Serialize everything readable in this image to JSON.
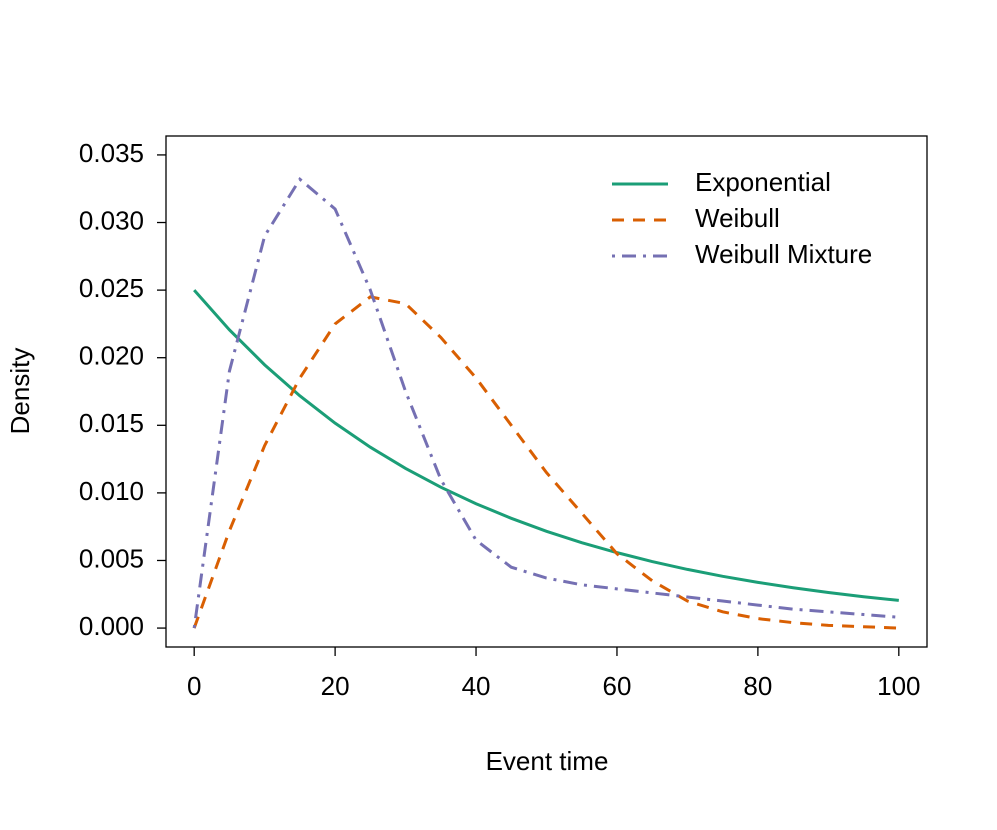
{
  "chart_data": {
    "type": "line",
    "xlabel": "Event time",
    "ylabel": "Density",
    "x": [
      0,
      5,
      10,
      15,
      20,
      25,
      30,
      35,
      40,
      45,
      50,
      55,
      60,
      65,
      70,
      75,
      80,
      85,
      90,
      95,
      100
    ],
    "series": [
      {
        "name": "Exponential",
        "color": "#1b9e77",
        "linestyle": "solid",
        "values": [
          0.025,
          0.02206,
          0.01947,
          0.01718,
          0.01516,
          0.01338,
          0.01181,
          0.01042,
          0.0092,
          0.00812,
          0.00716,
          0.00632,
          0.00558,
          0.00492,
          0.00434,
          0.00383,
          0.00338,
          0.00298,
          0.00263,
          0.00232,
          0.00205
        ]
      },
      {
        "name": "Weibull",
        "color": "#d95f02",
        "linestyle": "dashed",
        "values": [
          0,
          0.0072,
          0.0135,
          0.0185,
          0.0225,
          0.0245,
          0.024,
          0.0215,
          0.0185,
          0.015,
          0.0115,
          0.0085,
          0.0055,
          0.0035,
          0.002,
          0.0012,
          0.0007,
          0.0004,
          0.0002,
          0.0001,
          0
        ]
      },
      {
        "name": "Weibull Mixture",
        "color": "#7570b3",
        "linestyle": "dashdot",
        "values": [
          0,
          0.019,
          0.029,
          0.0332,
          0.031,
          0.025,
          0.0175,
          0.011,
          0.0065,
          0.0045,
          0.0037,
          0.0032,
          0.0029,
          0.0026,
          0.0023,
          0.002,
          0.0017,
          0.0014,
          0.0012,
          0.001,
          0.0008
        ]
      }
    ],
    "xlim": [
      -4,
      104
    ],
    "ylim": [
      -0.0014,
      0.0364
    ],
    "xticks": [
      0,
      20,
      40,
      60,
      80,
      100
    ],
    "yticks": [
      {
        "value": 0,
        "label": "0.000"
      },
      {
        "value": 0.005,
        "label": "0.005"
      },
      {
        "value": 0.01,
        "label": "0.010"
      },
      {
        "value": 0.015,
        "label": "0.015"
      },
      {
        "value": 0.02,
        "label": "0.020"
      },
      {
        "value": 0.025,
        "label": "0.025"
      },
      {
        "value": 0.03,
        "label": "0.030"
      },
      {
        "value": 0.035,
        "label": "0.035"
      }
    ],
    "legend": "top-right",
    "grid": false
  }
}
